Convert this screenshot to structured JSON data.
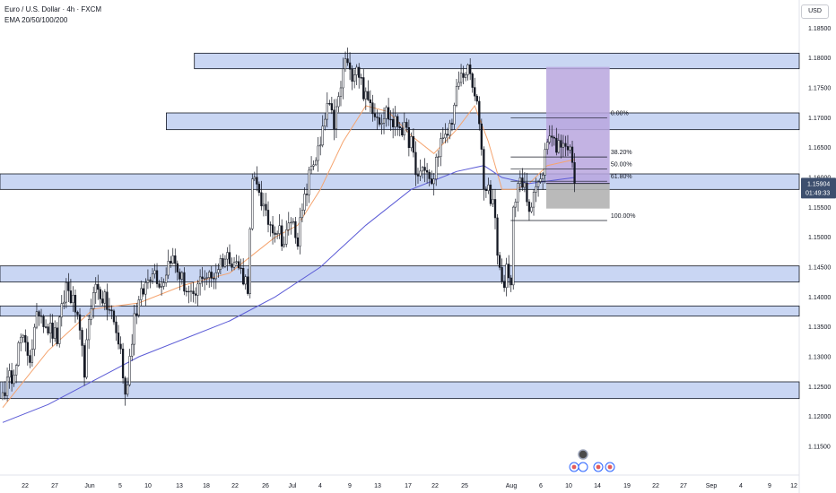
{
  "header": {
    "title": "Euro / U.S. Dollar · 4h · FXCM",
    "indicator": "EMA 20/50/100/200",
    "currency": "USD"
  },
  "colors": {
    "up": "#ffffff",
    "down": "#131722",
    "zone_fill": "#c9d6f3",
    "zone_stroke": "#131722",
    "ema_fast": "#f5a46f",
    "ema_slow": "#5b5bd6",
    "target_box": "#b9a6de",
    "stop_box": "#b3b3b3",
    "current_price_tag": "#3d4f6e"
  },
  "chart_data": {
    "type": "candlestick",
    "symbol": "EURUSD",
    "timeframe": "4h",
    "ylim": [
      1.1125,
      1.1875
    ],
    "y_ticks": [
      "1.11500",
      "1.12000",
      "1.12500",
      "1.13000",
      "1.13500",
      "1.14000",
      "1.14500",
      "1.15000",
      "1.15500",
      "1.16000",
      "1.16500",
      "1.17000",
      "1.17500",
      "1.18000",
      "1.18500"
    ],
    "x_ticks": [
      "22",
      "27",
      "Jun",
      "5",
      "10",
      "13",
      "18",
      "22",
      "26",
      "Jul",
      "4",
      "9",
      "13",
      "17",
      "22",
      "25",
      "Aug",
      "6",
      "10",
      "14",
      "19",
      "22",
      "27",
      "Sep",
      "4",
      "9",
      "12"
    ],
    "current_price": "1.15904",
    "countdown": "01:49:33",
    "path": [
      [
        0,
        1.124
      ],
      [
        4,
        1.127
      ],
      [
        8,
        1.133
      ],
      [
        12,
        1.13
      ],
      [
        16,
        1.138
      ],
      [
        20,
        1.135
      ],
      [
        24,
        1.133
      ],
      [
        28,
        1.142
      ],
      [
        32,
        1.138
      ],
      [
        36,
        1.128
      ],
      [
        40,
        1.142
      ],
      [
        44,
        1.14
      ],
      [
        48,
        1.137
      ],
      [
        52,
        1.131
      ],
      [
        54,
        1.123
      ],
      [
        58,
        1.137
      ],
      [
        62,
        1.141
      ],
      [
        66,
        1.145
      ],
      [
        70,
        1.142
      ],
      [
        74,
        1.147
      ],
      [
        80,
        1.142
      ],
      [
        84,
        1.139
      ],
      [
        88,
        1.144
      ],
      [
        92,
        1.143
      ],
      [
        96,
        1.146
      ],
      [
        100,
        1.147
      ],
      [
        104,
        1.145
      ],
      [
        108,
        1.142
      ],
      [
        110,
        1.159
      ],
      [
        113,
        1.158
      ],
      [
        116,
        1.153
      ],
      [
        119,
        1.152
      ],
      [
        122,
        1.151
      ],
      [
        124,
        1.149
      ],
      [
        127,
        1.153
      ],
      [
        130,
        1.15
      ],
      [
        134,
        1.158
      ],
      [
        136,
        1.162
      ],
      [
        140,
        1.165
      ],
      [
        143,
        1.172
      ],
      [
        146,
        1.169
      ],
      [
        149,
        1.175
      ],
      [
        151,
        1.18
      ],
      [
        153,
        1.177
      ],
      [
        156,
        1.179
      ],
      [
        158,
        1.176
      ],
      [
        160,
        1.173
      ],
      [
        163,
        1.172
      ],
      [
        166,
        1.17
      ],
      [
        169,
        1.171
      ],
      [
        172,
        1.169
      ],
      [
        175,
        1.169
      ],
      [
        178,
        1.167
      ],
      [
        180,
        1.166
      ],
      [
        182,
        1.16
      ],
      [
        186,
        1.162
      ],
      [
        189,
        1.158
      ],
      [
        192,
        1.165
      ],
      [
        195,
        1.166
      ],
      [
        198,
        1.17
      ],
      [
        201,
        1.176
      ],
      [
        204,
        1.178
      ],
      [
        206,
        1.177
      ],
      [
        208,
        1.173
      ],
      [
        210,
        1.17
      ],
      [
        212,
        1.159
      ],
      [
        214,
        1.158
      ],
      [
        216,
        1.156
      ],
      [
        218,
        1.148
      ],
      [
        220,
        1.142
      ],
      [
        222,
        1.144
      ],
      [
        224,
        1.141
      ],
      [
        225,
        1.156
      ],
      [
        227,
        1.159
      ],
      [
        230,
        1.158
      ],
      [
        232,
        1.155
      ],
      [
        234,
        1.158
      ],
      [
        237,
        1.159
      ],
      [
        239,
        1.164
      ],
      [
        241,
        1.168
      ],
      [
        243,
        1.166
      ],
      [
        245,
        1.165
      ],
      [
        247,
        1.167
      ],
      [
        249,
        1.165
      ],
      [
        251,
        1.163
      ],
      [
        252,
        1.159
      ]
    ],
    "ema_fast": [
      [
        0,
        1.1215
      ],
      [
        20,
        1.131
      ],
      [
        40,
        1.138
      ],
      [
        60,
        1.139
      ],
      [
        80,
        1.142
      ],
      [
        100,
        1.144
      ],
      [
        110,
        1.147
      ],
      [
        120,
        1.15
      ],
      [
        130,
        1.152
      ],
      [
        140,
        1.158
      ],
      [
        150,
        1.166
      ],
      [
        160,
        1.172
      ],
      [
        170,
        1.171
      ],
      [
        180,
        1.167
      ],
      [
        190,
        1.164
      ],
      [
        200,
        1.168
      ],
      [
        208,
        1.172
      ],
      [
        214,
        1.166
      ],
      [
        220,
        1.158
      ],
      [
        226,
        1.158
      ],
      [
        232,
        1.159
      ],
      [
        240,
        1.162
      ],
      [
        252,
        1.163
      ]
    ],
    "ema_slow": [
      [
        0,
        1.119
      ],
      [
        20,
        1.122
      ],
      [
        40,
        1.126
      ],
      [
        60,
        1.13
      ],
      [
        80,
        1.133
      ],
      [
        100,
        1.136
      ],
      [
        120,
        1.14
      ],
      [
        140,
        1.145
      ],
      [
        160,
        1.152
      ],
      [
        180,
        1.158
      ],
      [
        200,
        1.161
      ],
      [
        212,
        1.162
      ],
      [
        220,
        1.16
      ],
      [
        232,
        1.159
      ],
      [
        252,
        1.16
      ]
    ],
    "zones": [
      {
        "x0": 0.2432,
        "x1": 1.0,
        "y0": 1.1782,
        "y1": 1.1808
      },
      {
        "x0": 0.2081,
        "x1": 1.0,
        "y0": 1.168,
        "y1": 1.1708
      },
      {
        "x0": 0.0,
        "x1": 1.0,
        "y0": 1.158,
        "y1": 1.1606
      },
      {
        "x0": 0.0,
        "x1": 1.0,
        "y0": 1.1425,
        "y1": 1.1452
      },
      {
        "x0": 0.0,
        "x1": 1.0,
        "y0": 1.1368,
        "y1": 1.1385
      },
      {
        "x0": 0.0,
        "x1": 1.0,
        "y0": 1.123,
        "y1": 1.1258
      }
    ],
    "fibonacci": {
      "x0": 0.639,
      "x1": 0.7597,
      "high": 1.17,
      "low": 1.1528,
      "levels": [
        {
          "ratio": 0.0,
          "label": "0.00%"
        },
        {
          "ratio": 0.382,
          "label": "38.20%"
        },
        {
          "ratio": 0.5,
          "label": "50.00%"
        },
        {
          "ratio": 0.618,
          "label": "61.80%"
        },
        {
          "ratio": 1.0,
          "label": "100.00%"
        }
      ]
    },
    "position": {
      "x0": 0.6835,
      "x1": 0.7628,
      "entry": 1.159,
      "target": 1.1785,
      "stop": 1.1548
    }
  }
}
